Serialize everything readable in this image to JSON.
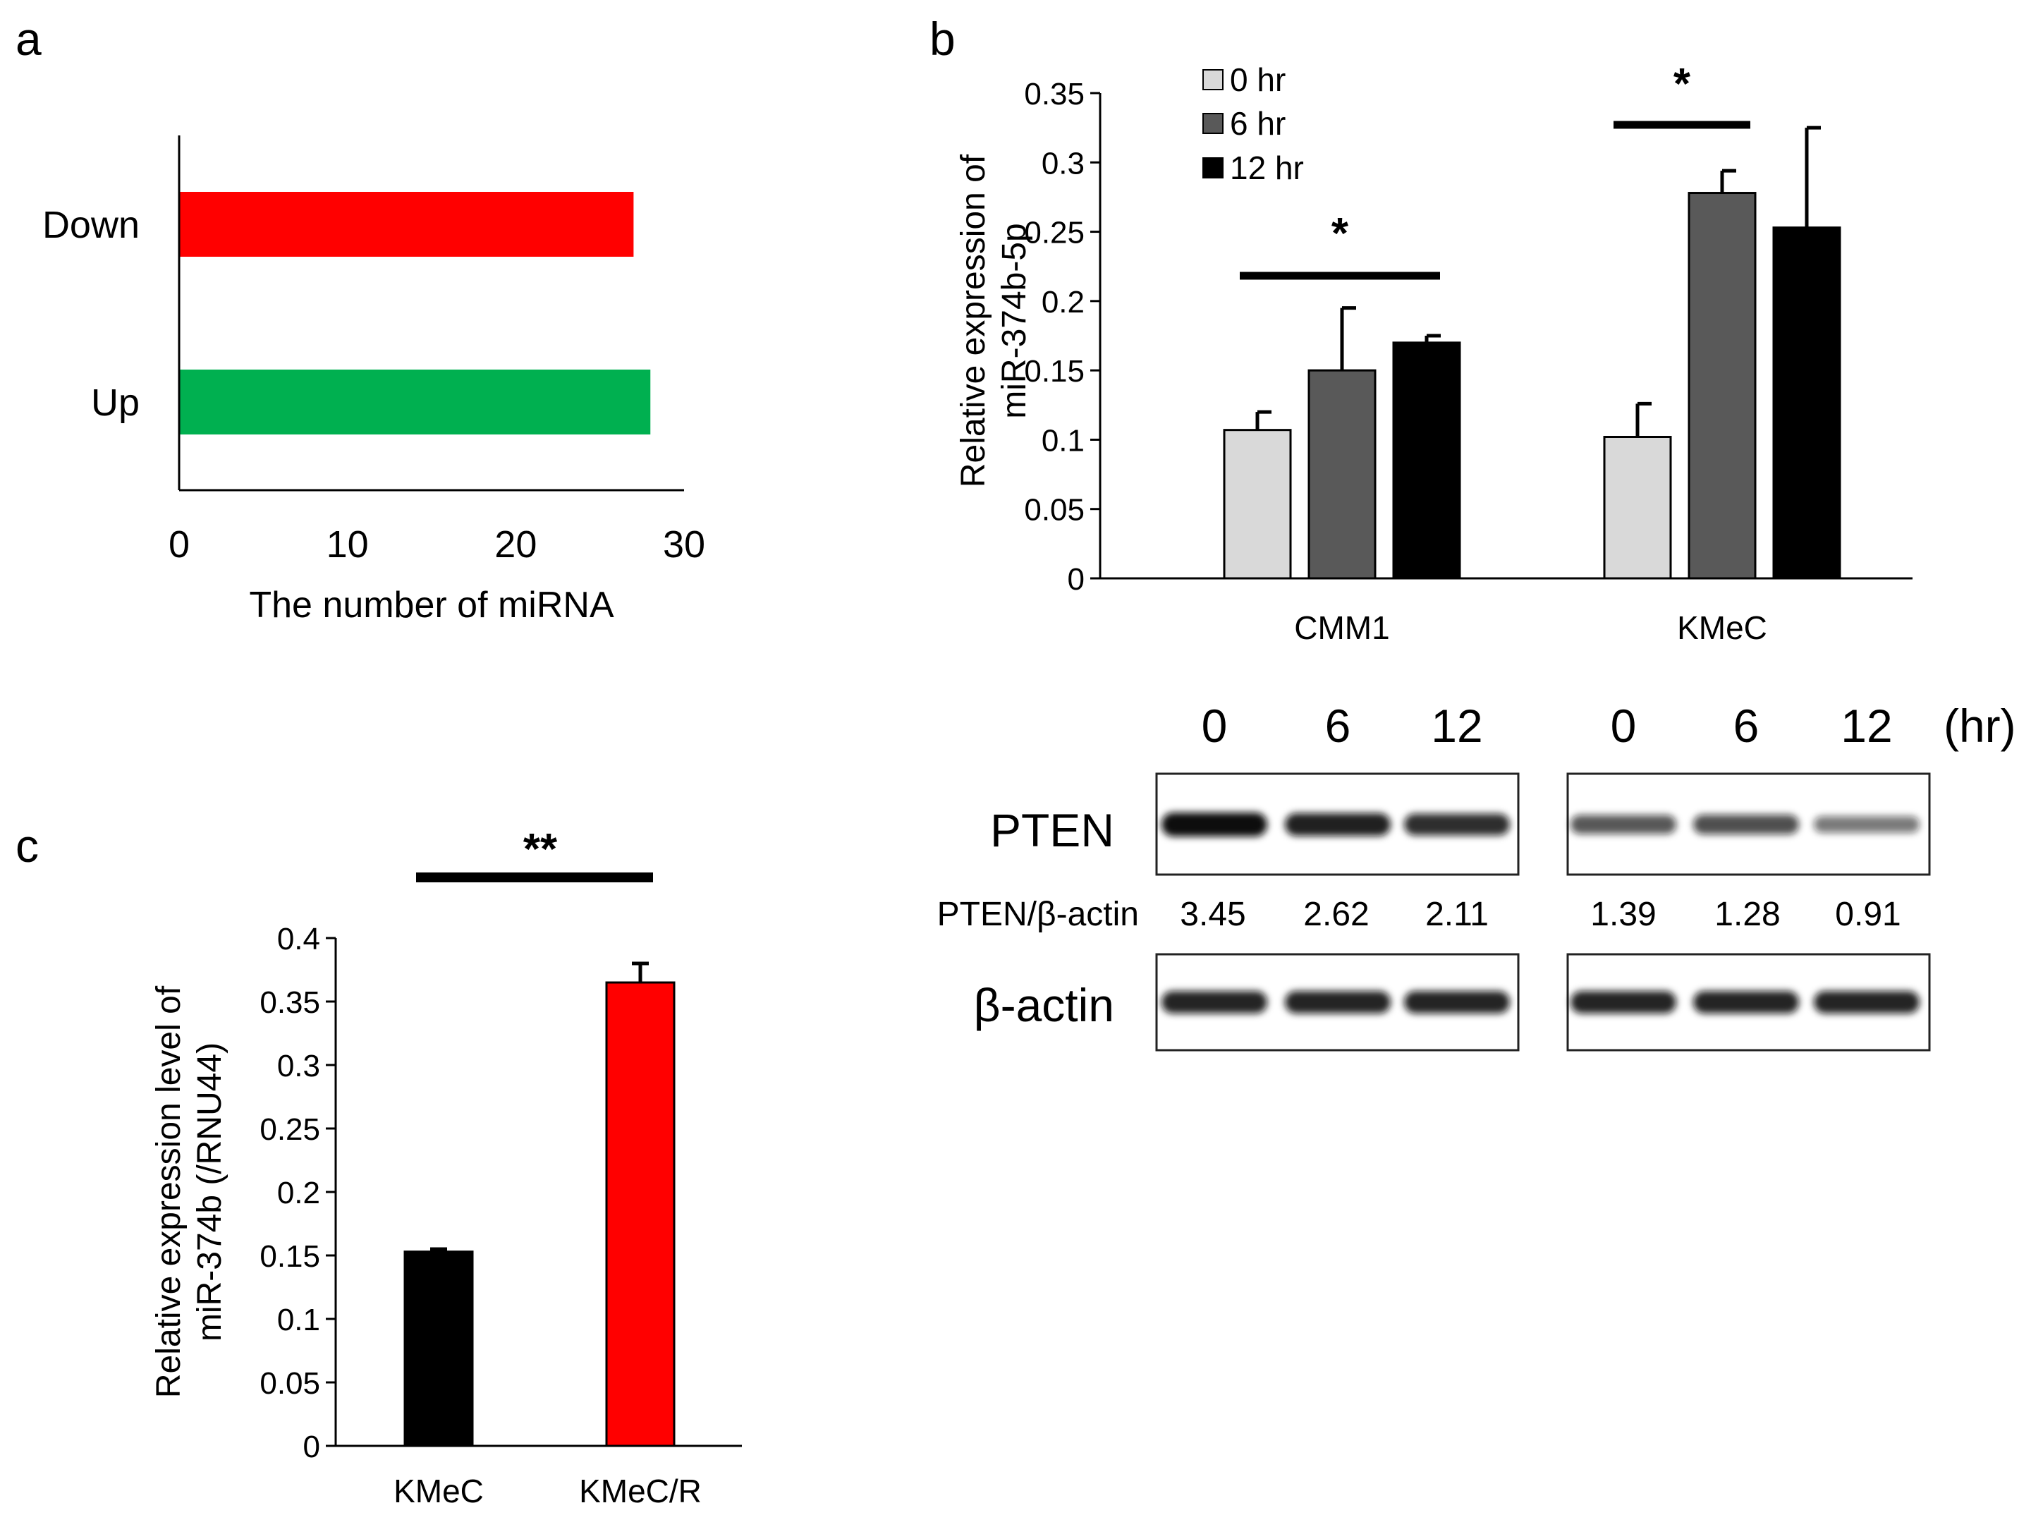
{
  "panels": {
    "a": {
      "letter": "a"
    },
    "b": {
      "letter": "b"
    },
    "c": {
      "letter": "c"
    }
  },
  "chart_data": [
    {
      "id": "a",
      "type": "bar",
      "orientation": "horizontal",
      "title": "",
      "categories": [
        "Down",
        "Up"
      ],
      "values": [
        27,
        28
      ],
      "colors": [
        "#ff0000",
        "#00b050"
      ],
      "xlabel": "The number of miRNA",
      "ylabel": "",
      "xlim": [
        0,
        30
      ],
      "xticks": [
        0,
        10,
        20,
        30
      ],
      "grid": false
    },
    {
      "id": "b",
      "type": "bar",
      "title": "",
      "categories": [
        "CMM1",
        "KMeC"
      ],
      "series": [
        {
          "name": "0 hr",
          "color": "#d9d9d9",
          "values": [
            0.107,
            0.102
          ],
          "errors": [
            0.013,
            0.024
          ]
        },
        {
          "name": "6 hr",
          "color": "#595959",
          "values": [
            0.15,
            0.278
          ],
          "errors": [
            0.045,
            0.016
          ]
        },
        {
          "name": "12 hr",
          "color": "#000000",
          "values": [
            0.17,
            0.253
          ],
          "errors": [
            0.005,
            0.072
          ]
        }
      ],
      "ylabel_lines": [
        "Relative expression of",
        "miR-374b-5p"
      ],
      "ylim": [
        0,
        0.35
      ],
      "yticks": [
        "0",
        "0.05",
        "0.1",
        "0.15",
        "0.2",
        "0.25",
        "0.3",
        "0.35"
      ],
      "legend_position": "top-left",
      "significance": [
        {
          "group": "CMM1",
          "label": "*"
        },
        {
          "group": "KMeC",
          "label": "*"
        }
      ],
      "grid": false
    },
    {
      "id": "c",
      "type": "bar",
      "title": "",
      "categories": [
        "KMeC",
        "KMeC/R"
      ],
      "values": [
        0.153,
        0.365
      ],
      "errors": [
        0.002,
        0.015
      ],
      "colors": [
        "#000000",
        "#ff0000"
      ],
      "ylabel_lines": [
        "Relative expression level of",
        "miR-374b (/RNU44)"
      ],
      "ylim": [
        0,
        0.4
      ],
      "yticks": [
        "0",
        "0.05",
        "0.1",
        "0.15",
        "0.2",
        "0.25",
        "0.3",
        "0.35",
        "0.4"
      ],
      "significance": [
        {
          "label": "**"
        }
      ],
      "grid": false
    }
  ],
  "western_blot": {
    "time_labels": [
      "0",
      "6",
      "12",
      "0",
      "6",
      "12"
    ],
    "unit_label": "(hr)",
    "groups": [
      "CMM1",
      "KMeC"
    ],
    "rows": [
      {
        "label": "PTEN",
        "intensities": [
          1.0,
          0.9,
          0.82,
          0.6,
          0.65,
          0.42
        ]
      },
      {
        "label": "β-actin",
        "intensities": [
          0.88,
          0.88,
          0.88,
          0.88,
          0.88,
          0.88
        ]
      }
    ],
    "ratio_label": "PTEN/β-actin",
    "ratios": [
      "3.45",
      "2.62",
      "2.11",
      "1.39",
      "1.28",
      "0.91"
    ]
  }
}
